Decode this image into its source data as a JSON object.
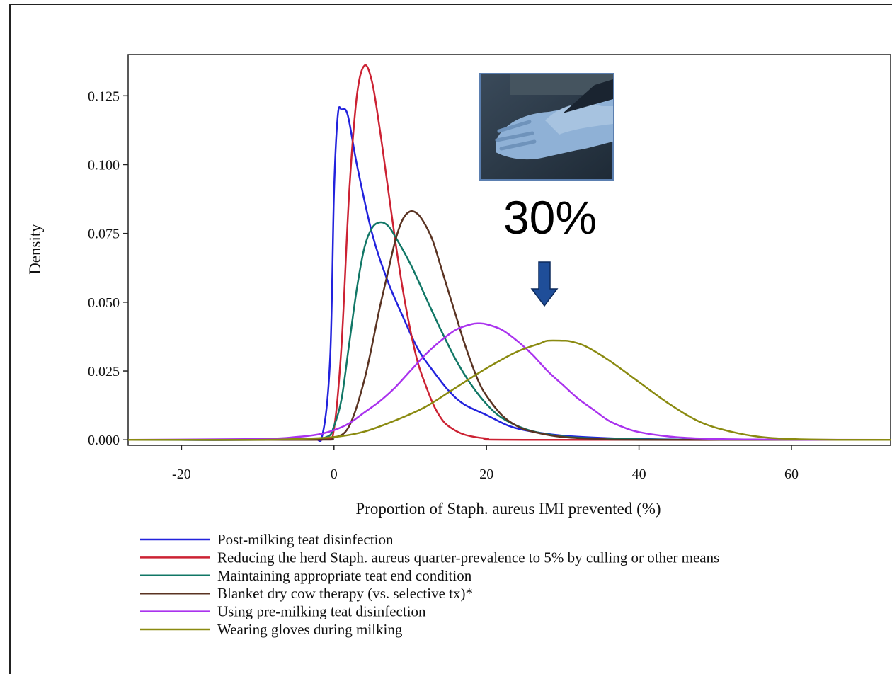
{
  "chart_data": {
    "type": "line",
    "xlabel": "Proportion of Staph. aureus IMI prevented (%)",
    "ylabel": "Density",
    "xlim": [
      -27,
      73
    ],
    "ylim": [
      -0.002,
      0.14
    ],
    "x_ticks": [
      -20,
      0,
      20,
      40,
      60
    ],
    "x_tick_labels": [
      "-20",
      "0",
      "20",
      "40",
      "60"
    ],
    "y_ticks": [
      0,
      0.025,
      0.05,
      0.075,
      0.1,
      0.125
    ],
    "y_tick_labels": [
      "0.000",
      "0.025",
      "0.050",
      "0.075",
      "0.100",
      "0.125"
    ],
    "grid": false,
    "legend_position": "bottom",
    "annotation": {
      "text": "30%",
      "arrow_color": "#1f4e99",
      "arrow_target_x": 28,
      "image": "blue-gloved-hands-photo"
    },
    "series": [
      {
        "name": "Post-milking teat disinfection",
        "color": "#2222dd",
        "points": [
          [
            -27,
            0
          ],
          [
            -10,
            0
          ],
          [
            -3,
            0.0005
          ],
          [
            -1.5,
            0.002
          ],
          [
            -0.5,
            0.03
          ],
          [
            0,
            0.09
          ],
          [
            0.5,
            0.118
          ],
          [
            1,
            0.12
          ],
          [
            1.8,
            0.118
          ],
          [
            3,
            0.1
          ],
          [
            5,
            0.075
          ],
          [
            7,
            0.058
          ],
          [
            9,
            0.045
          ],
          [
            11,
            0.033
          ],
          [
            13,
            0.025
          ],
          [
            15,
            0.018
          ],
          [
            17,
            0.013
          ],
          [
            20,
            0.009
          ],
          [
            23,
            0.005
          ],
          [
            26,
            0.003
          ],
          [
            30,
            0.0015
          ],
          [
            35,
            0.0007
          ],
          [
            40,
            0.0003
          ],
          [
            50,
            0
          ],
          [
            73,
            0
          ]
        ]
      },
      {
        "name": "Reducing the herd Staph. aureus quarter-prevalence to 5% by culling or other means",
        "color": "#cc2233",
        "points": [
          [
            -27,
            0
          ],
          [
            -5,
            0
          ],
          [
            -1,
            0.0005
          ],
          [
            0,
            0.004
          ],
          [
            1,
            0.035
          ],
          [
            2,
            0.09
          ],
          [
            3,
            0.125
          ],
          [
            4,
            0.136
          ],
          [
            5,
            0.13
          ],
          [
            6,
            0.113
          ],
          [
            7,
            0.093
          ],
          [
            8,
            0.073
          ],
          [
            9,
            0.055
          ],
          [
            10,
            0.04
          ],
          [
            11,
            0.028
          ],
          [
            12,
            0.02
          ],
          [
            13,
            0.013
          ],
          [
            14,
            0.008
          ],
          [
            15,
            0.005
          ],
          [
            17,
            0.002
          ],
          [
            20,
            0.0005
          ],
          [
            25,
            0
          ],
          [
            73,
            0
          ]
        ]
      },
      {
        "name": "Maintaining appropriate teat end condition",
        "color": "#117766",
        "points": [
          [
            -27,
            0
          ],
          [
            -5,
            0
          ],
          [
            -1,
            0.001
          ],
          [
            0,
            0.005
          ],
          [
            1,
            0.015
          ],
          [
            2,
            0.035
          ],
          [
            3,
            0.055
          ],
          [
            4,
            0.07
          ],
          [
            5,
            0.077
          ],
          [
            6,
            0.079
          ],
          [
            7,
            0.078
          ],
          [
            8,
            0.074
          ],
          [
            10,
            0.064
          ],
          [
            12,
            0.052
          ],
          [
            14,
            0.04
          ],
          [
            16,
            0.029
          ],
          [
            18,
            0.02
          ],
          [
            20,
            0.013
          ],
          [
            22,
            0.008
          ],
          [
            25,
            0.004
          ],
          [
            28,
            0.002
          ],
          [
            32,
            0.0008
          ],
          [
            40,
            0.0002
          ],
          [
            50,
            0
          ],
          [
            73,
            0
          ]
        ]
      },
      {
        "name": "Blanket dry cow therapy (vs. selective tx)*",
        "color": "#5a3322",
        "points": [
          [
            -27,
            0
          ],
          [
            -3,
            0
          ],
          [
            0,
            0.0008
          ],
          [
            2,
            0.005
          ],
          [
            4,
            0.022
          ],
          [
            6,
            0.048
          ],
          [
            7,
            0.06
          ],
          [
            8,
            0.072
          ],
          [
            9,
            0.08
          ],
          [
            10,
            0.083
          ],
          [
            11,
            0.082
          ],
          [
            12,
            0.078
          ],
          [
            13,
            0.072
          ],
          [
            14,
            0.063
          ],
          [
            15,
            0.054
          ],
          [
            16,
            0.045
          ],
          [
            17,
            0.036
          ],
          [
            18,
            0.028
          ],
          [
            19,
            0.021
          ],
          [
            20,
            0.016
          ],
          [
            22,
            0.009
          ],
          [
            24,
            0.005
          ],
          [
            26,
            0.003
          ],
          [
            30,
            0.001
          ],
          [
            35,
            0.0003
          ],
          [
            40,
            0
          ],
          [
            73,
            0
          ]
        ]
      },
      {
        "name": "Using pre-milking teat disinfection",
        "color": "#aa33ee",
        "points": [
          [
            -27,
            0
          ],
          [
            -10,
            0.0003
          ],
          [
            -5,
            0.001
          ],
          [
            -2,
            0.002
          ],
          [
            0,
            0.0035
          ],
          [
            2,
            0.006
          ],
          [
            4,
            0.01
          ],
          [
            6,
            0.014
          ],
          [
            8,
            0.019
          ],
          [
            10,
            0.025
          ],
          [
            12,
            0.031
          ],
          [
            14,
            0.036
          ],
          [
            16,
            0.04
          ],
          [
            18,
            0.042
          ],
          [
            19,
            0.0423
          ],
          [
            20,
            0.042
          ],
          [
            22,
            0.04
          ],
          [
            24,
            0.036
          ],
          [
            26,
            0.031
          ],
          [
            28,
            0.025
          ],
          [
            30,
            0.02
          ],
          [
            32,
            0.015
          ],
          [
            34,
            0.011
          ],
          [
            36,
            0.007
          ],
          [
            38,
            0.0045
          ],
          [
            40,
            0.0028
          ],
          [
            44,
            0.0012
          ],
          [
            48,
            0.0005
          ],
          [
            55,
            0.0001
          ],
          [
            73,
            0
          ]
        ]
      },
      {
        "name": "Wearing gloves during milking",
        "color": "#8a8a10",
        "points": [
          [
            -27,
            0
          ],
          [
            -10,
            0
          ],
          [
            -5,
            0.0003
          ],
          [
            0,
            0.001
          ],
          [
            4,
            0.003
          ],
          [
            8,
            0.007
          ],
          [
            12,
            0.012
          ],
          [
            16,
            0.019
          ],
          [
            20,
            0.026
          ],
          [
            24,
            0.032
          ],
          [
            27,
            0.035
          ],
          [
            28,
            0.036
          ],
          [
            30,
            0.036
          ],
          [
            31,
            0.0358
          ],
          [
            33,
            0.034
          ],
          [
            36,
            0.029
          ],
          [
            40,
            0.021
          ],
          [
            44,
            0.013
          ],
          [
            48,
            0.0065
          ],
          [
            52,
            0.003
          ],
          [
            56,
            0.001
          ],
          [
            60,
            0.0003
          ],
          [
            66,
            0
          ],
          [
            73,
            0
          ]
        ]
      }
    ]
  }
}
